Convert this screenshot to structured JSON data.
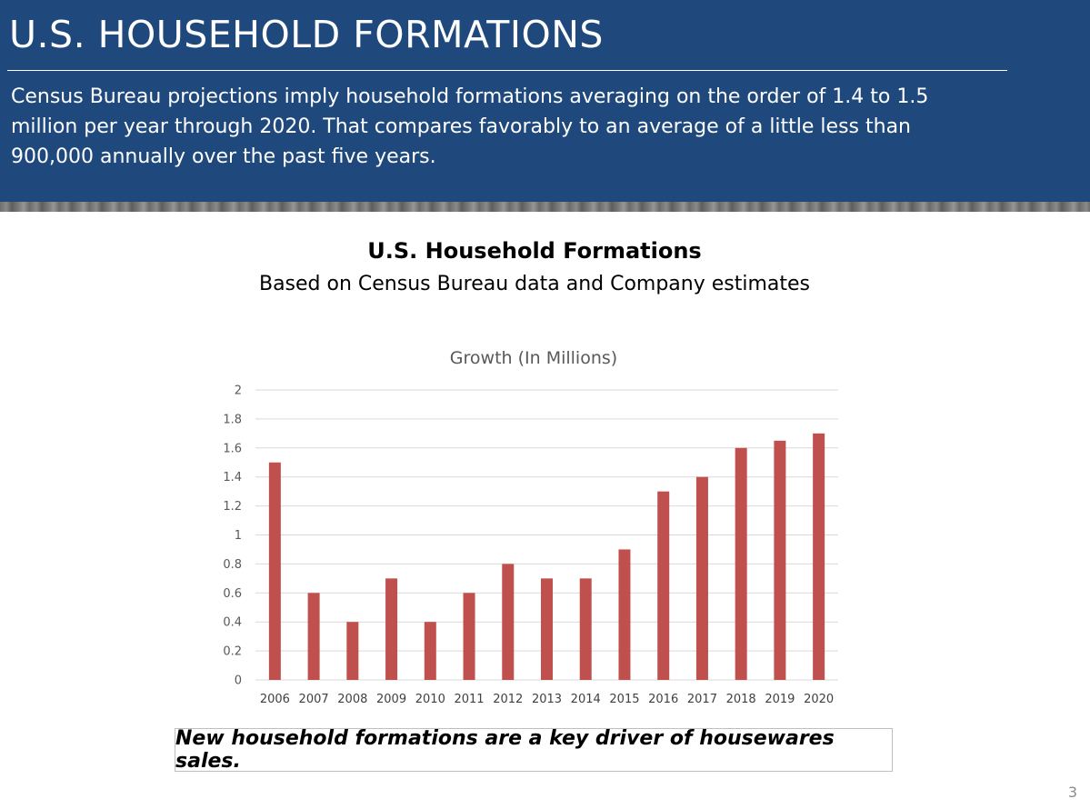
{
  "slide": {
    "title": "U.S. HOUSEHOLD FORMATIONS",
    "intro": "Census Bureau projections imply household formations averaging on the order of 1.4 to 1.5 million per year through 2020. That compares favorably to an average of a little less than 900,000 annually over the past five years.",
    "chart_heading": "U.S. Household Formations",
    "chart_subheading": "Based on Census Bureau data and Company estimates",
    "callout": "New household formations are a key driver of housewares sales.",
    "page_number": "3"
  },
  "colors": {
    "header_bg": "#1f497d",
    "bar": "#c0504d",
    "gridline": "#d9d9d9"
  },
  "chart_data": {
    "type": "bar",
    "title": "Growth (In Millions)",
    "categories": [
      "2006",
      "2007",
      "2008",
      "2009",
      "2010",
      "2011",
      "2012",
      "2013",
      "2014",
      "2015",
      "2016",
      "2017",
      "2018",
      "2019",
      "2020"
    ],
    "values": [
      1.5,
      0.6,
      0.4,
      0.7,
      0.4,
      0.6,
      0.8,
      0.7,
      0.7,
      0.9,
      1.3,
      1.4,
      1.6,
      1.65,
      1.7
    ],
    "xlabel": "",
    "ylabel": "",
    "ylim": [
      0,
      2
    ],
    "yticks": [
      "0",
      "0.2",
      "0.4",
      "0.6",
      "0.8",
      "1",
      "1.2",
      "1.4",
      "1.6",
      "1.8",
      "2"
    ],
    "grid": true,
    "legend": "none"
  }
}
